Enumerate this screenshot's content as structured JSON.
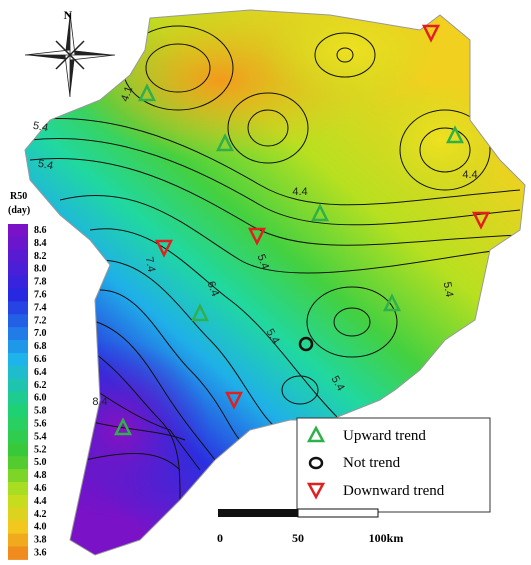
{
  "compass": {
    "label": "N"
  },
  "colorbar": {
    "title": "R50",
    "unit": "(day)",
    "ticks": [
      "8.6",
      "8.4",
      "8.2",
      "8.0",
      "7.8",
      "7.6",
      "7.4",
      "7.2",
      "7.0",
      "6.8",
      "6.6",
      "6.4",
      "6.2",
      "6.0",
      "5.8",
      "5.6",
      "5.4",
      "5.2",
      "5.0",
      "4.8",
      "4.6",
      "4.4",
      "4.2",
      "4.0",
      "3.8",
      "3.6"
    ]
  },
  "contour_labels": [
    "4.1",
    "5.4",
    "5.4",
    "4.4",
    "4.4",
    "5.4",
    "6.4",
    "5.4",
    "5.4",
    "5.4",
    "8.4",
    "7.4"
  ],
  "legend": {
    "items": [
      "Upward trend",
      "Not trend",
      "Downward trend"
    ]
  },
  "scale_bar": {
    "labels": [
      "0",
      "50",
      "100km"
    ]
  }
}
